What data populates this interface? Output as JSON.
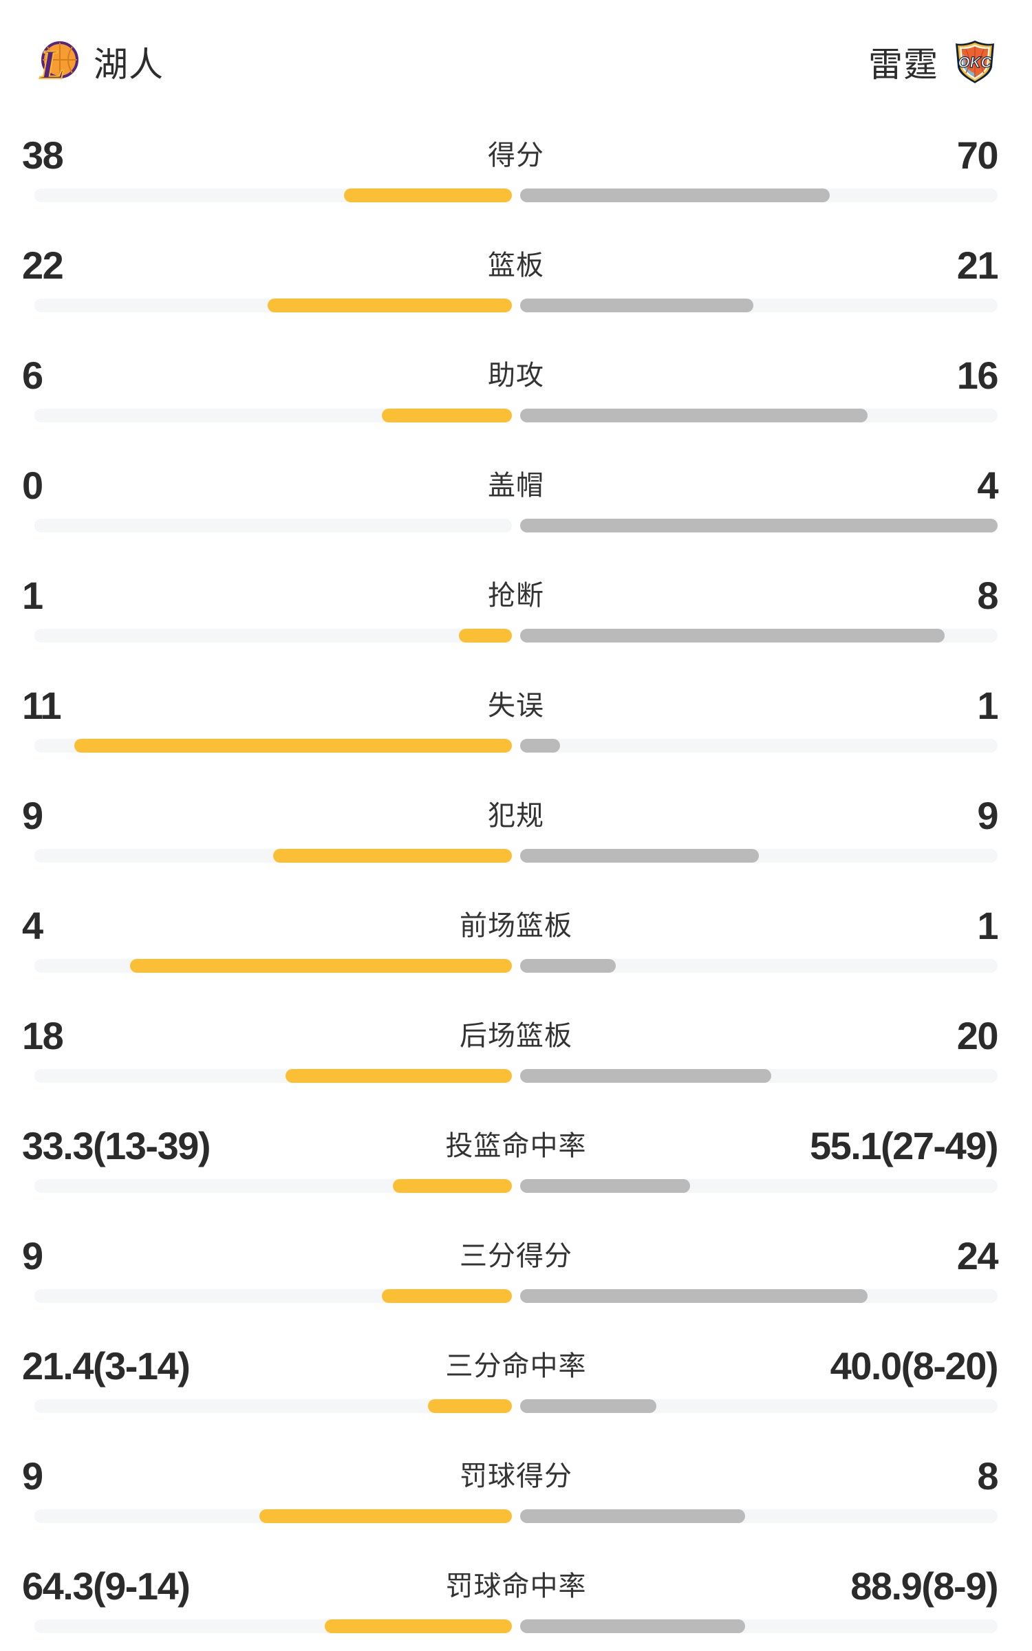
{
  "header": {
    "home": {
      "name": "湖人",
      "logo": "lakers-logo"
    },
    "away": {
      "name": "雷霆",
      "logo": "okc-logo",
      "logo_text": "OKC"
    }
  },
  "colors": {
    "home_bar": "#FBBF35",
    "away_bar": "#BABABA",
    "track": "#F5F6F8",
    "number_text": "#2B2B2B",
    "label_text": "#333333",
    "lakers_purple": "#552583",
    "lakers_gold": "#FDB927",
    "lakers_orange": "#F79C33",
    "okc_navy": "#0C2340",
    "okc_orange": "#EC6332",
    "okc_yellow": "#FDBB30",
    "okc_blue": "#6FC0E7"
  },
  "stats": [
    {
      "label": "得分",
      "home": "38",
      "away": "70",
      "home_pct": 35.2,
      "away_pct": 64.8
    },
    {
      "label": "篮板",
      "home": "22",
      "away": "21",
      "home_pct": 51.16,
      "away_pct": 48.84
    },
    {
      "label": "助攻",
      "home": "6",
      "away": "16",
      "home_pct": 27.27,
      "away_pct": 72.73
    },
    {
      "label": "盖帽",
      "home": "0",
      "away": "4",
      "home_pct": 0,
      "away_pct": 100
    },
    {
      "label": "抢断",
      "home": "1",
      "away": "8",
      "home_pct": 11.11,
      "away_pct": 88.89
    },
    {
      "label": "失误",
      "home": "11",
      "away": "1",
      "home_pct": 91.67,
      "away_pct": 8.33
    },
    {
      "label": "犯规",
      "home": "9",
      "away": "9",
      "home_pct": 50,
      "away_pct": 50
    },
    {
      "label": "前场篮板",
      "home": "4",
      "away": "1",
      "home_pct": 80,
      "away_pct": 20
    },
    {
      "label": "后场篮板",
      "home": "18",
      "away": "20",
      "home_pct": 47.37,
      "away_pct": 52.63
    },
    {
      "label": "投篮命中率",
      "home": "33.3(13-39)",
      "away": "55.1(27-49)",
      "home_pct": 24.98,
      "away_pct": 35.53
    },
    {
      "label": "三分得分",
      "home": "9",
      "away": "24",
      "home_pct": 27.27,
      "away_pct": 72.73
    },
    {
      "label": "三分命中率",
      "home": "21.4(3-14)",
      "away": "40.0(8-20)",
      "home_pct": 17.63,
      "away_pct": 28.57
    },
    {
      "label": "罚球得分",
      "home": "9",
      "away": "8",
      "home_pct": 52.94,
      "away_pct": 47.06
    },
    {
      "label": "罚球命中率",
      "home": "64.3(9-14)",
      "away": "88.9(8-9)",
      "home_pct": 39.14,
      "away_pct": 47.06
    }
  ],
  "chart_data": {
    "type": "bar",
    "orientation": "horizontal-diverging",
    "categories": [
      "得分",
      "篮板",
      "助攻",
      "盖帽",
      "抢断",
      "失误",
      "犯规",
      "前场篮板",
      "后场篮板",
      "投篮命中率",
      "三分得分",
      "三分命中率",
      "罚球得分",
      "罚球命中率"
    ],
    "series": [
      {
        "name": "湖人",
        "color": "#FBBF35",
        "values": [
          38,
          22,
          6,
          0,
          1,
          11,
          9,
          4,
          18,
          33.3,
          9,
          21.4,
          9,
          64.3
        ]
      },
      {
        "name": "雷霆",
        "color": "#BABABA",
        "values": [
          70,
          21,
          16,
          4,
          8,
          1,
          9,
          1,
          20,
          55.1,
          24,
          40.0,
          8,
          88.9
        ]
      }
    ],
    "value_labels": {
      "湖人": [
        "38",
        "22",
        "6",
        "0",
        "1",
        "11",
        "9",
        "4",
        "18",
        "33.3(13-39)",
        "9",
        "21.4(3-14)",
        "9",
        "64.3(9-14)"
      ],
      "雷霆": [
        "70",
        "21",
        "16",
        "4",
        "8",
        "1",
        "9",
        "1",
        "20",
        "55.1(27-49)",
        "24",
        "40.0(8-20)",
        "8",
        "88.9(8-9)"
      ]
    },
    "title": "",
    "xlabel": "",
    "ylabel": "",
    "legend_position": "top",
    "grid": false
  }
}
